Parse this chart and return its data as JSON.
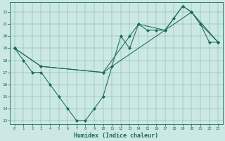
{
  "xlabel": "Humidex (Indice chaleur)",
  "bg_color": "#cce8e4",
  "line_color": "#1a6b5a",
  "xlim": [
    -0.5,
    23.5
  ],
  "ylim": [
    12.7,
    22.8
  ],
  "yticks": [
    13,
    14,
    15,
    16,
    17,
    18,
    19,
    20,
    21,
    22
  ],
  "xticks": [
    0,
    1,
    2,
    3,
    4,
    5,
    6,
    7,
    8,
    9,
    10,
    11,
    12,
    13,
    14,
    15,
    16,
    17,
    18,
    19,
    20,
    21,
    22,
    23
  ],
  "series1_x": [
    0,
    1,
    2,
    3,
    4,
    5,
    6,
    7,
    8,
    9,
    10,
    11,
    12,
    13,
    14,
    15,
    16,
    17,
    18,
    19,
    20,
    21,
    22,
    23
  ],
  "series1_y": [
    19,
    18,
    17,
    17,
    16,
    15,
    14,
    13,
    13,
    14,
    15,
    17.5,
    20,
    19,
    21,
    20.5,
    20.5,
    20.5,
    21.5,
    22.5,
    22,
    21,
    19.5,
    19.5
  ],
  "series2_x": [
    0,
    3,
    10,
    13,
    14,
    17,
    19,
    20,
    21,
    23
  ],
  "series2_y": [
    19,
    17.5,
    17,
    20,
    21,
    20.5,
    22.5,
    22,
    21,
    19.5
  ],
  "series3_x": [
    0,
    3,
    10,
    20,
    23
  ],
  "series3_y": [
    19,
    17.5,
    17,
    22,
    19.5
  ]
}
